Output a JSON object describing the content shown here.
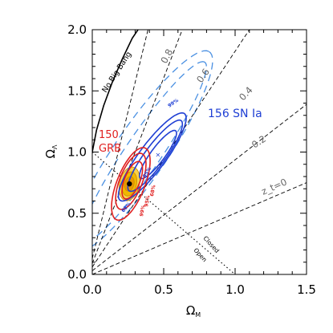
{
  "chart_data": {
    "type": "contour",
    "xlim": [
      0.0,
      1.5
    ],
    "ylim": [
      0.0,
      2.0
    ],
    "x_ticks": [
      {
        "value": 0.0,
        "label": "0.0"
      },
      {
        "value": 0.5,
        "label": "0.5"
      },
      {
        "value": 1.0,
        "label": "1.0"
      },
      {
        "value": 1.5,
        "label": "1.5"
      }
    ],
    "y_ticks": [
      {
        "value": 0.0,
        "label": "0.0"
      },
      {
        "value": 0.5,
        "label": "0.5"
      },
      {
        "value": 1.0,
        "label": "1.0"
      },
      {
        "value": 1.5,
        "label": "1.5"
      },
      {
        "value": 2.0,
        "label": "2.0"
      }
    ],
    "xlabel": {
      "main": "Ω",
      "sub": "M"
    },
    "ylabel": {
      "main": "Ω",
      "sub": "Λ"
    },
    "grid": false,
    "no_big_bang_curve": {
      "label": "No Big Bang",
      "points": [
        [
          0.0,
          1.0
        ],
        [
          0.03,
          1.18
        ],
        [
          0.08,
          1.38
        ],
        [
          0.14,
          1.57
        ],
        [
          0.21,
          1.76
        ],
        [
          0.28,
          1.93
        ],
        [
          0.32,
          2.0
        ]
      ]
    },
    "flat_line": {
      "labels": [
        "Closed",
        "Open"
      ],
      "points": [
        [
          0.0,
          1.0
        ],
        [
          1.0,
          0.0
        ]
      ]
    },
    "transition_lines": [
      {
        "label": "0.8",
        "points": [
          [
            0.0,
            0.13
          ],
          [
            0.39,
            2.0
          ]
        ]
      },
      {
        "label": "0.6",
        "points": [
          [
            0.0,
            0.09
          ],
          [
            0.63,
            2.0
          ]
        ]
      },
      {
        "label": "0.4",
        "points": [
          [
            0.0,
            0.06
          ],
          [
            1.1,
            2.0
          ]
        ]
      },
      {
        "label": "0.2",
        "points": [
          [
            0.0,
            0.03
          ],
          [
            1.5,
            1.39
          ]
        ]
      },
      {
        "label": "z_t=0",
        "points": [
          [
            0.0,
            0.0
          ],
          [
            1.5,
            0.75
          ]
        ]
      }
    ],
    "series": [
      {
        "name": "156 SN Ia",
        "color": "#1f3fd4",
        "best_fit": [
          0.46,
          0.98
        ],
        "contours": [
          {
            "level": "68%",
            "center": [
              0.46,
              0.98
            ],
            "a": 0.23,
            "b": 0.052,
            "angle_deg": 58
          },
          {
            "level": "95%",
            "center": [
              0.44,
              0.97
            ],
            "a": 0.34,
            "b": 0.075,
            "angle_deg": 58
          },
          {
            "level": "99%",
            "center": [
              0.42,
              0.96
            ],
            "a": 0.42,
            "b": 0.097,
            "angle_deg": 58
          }
        ],
        "dashed_bands": [
          {
            "center": [
              0.36,
              1.0
            ],
            "a": 0.85,
            "b": 0.13,
            "angle_deg": 60
          },
          {
            "center": [
              0.34,
              1.0
            ],
            "a": 0.95,
            "b": 0.19,
            "angle_deg": 60
          }
        ],
        "contour_labels": [
          "99%",
          "68%",
          "95%"
        ]
      },
      {
        "name": "150 GRB",
        "color": "#e02020",
        "best_fit": [
          0.28,
          0.75
        ],
        "contours": [
          {
            "level": "68%",
            "center": [
              0.28,
              0.77
            ],
            "a": 0.16,
            "b": 0.055,
            "angle_deg": 72
          },
          {
            "level": "95%",
            "center": [
              0.27,
              0.76
            ],
            "a": 0.24,
            "b": 0.08,
            "angle_deg": 72
          },
          {
            "level": "99%",
            "center": [
              0.27,
              0.74
            ],
            "a": 0.31,
            "b": 0.1,
            "angle_deg": 72
          }
        ],
        "contour_labels": [
          "99%",
          "95%",
          "68%"
        ]
      }
    ],
    "joint_fit": {
      "color": "#f5c400",
      "best_fit": [
        0.26,
        0.74
      ],
      "contours": [
        {
          "level": "99%",
          "center": [
            0.26,
            0.74
          ],
          "a": 0.14,
          "b": 0.07,
          "angle_deg": 80
        },
        {
          "level": "95%",
          "center": [
            0.26,
            0.74
          ],
          "a": 0.1,
          "b": 0.05,
          "angle_deg": 80
        },
        {
          "level": "68%",
          "center": [
            0.26,
            0.74
          ],
          "a": 0.06,
          "b": 0.032,
          "angle_deg": 80
        }
      ]
    },
    "annotations": {
      "sn_label": "156 SN Ia",
      "grb_label_line1": "150",
      "grb_label_line2": "GRB"
    }
  }
}
